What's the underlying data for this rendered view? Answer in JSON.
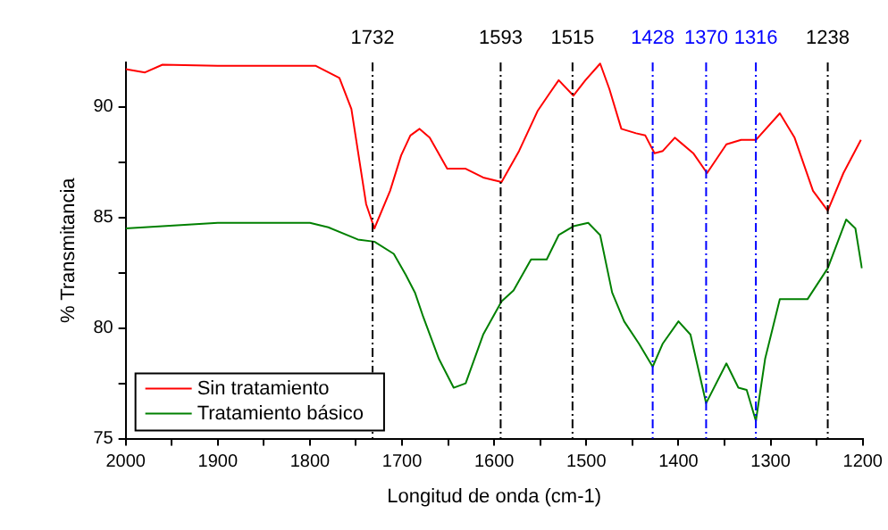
{
  "chart_data": {
    "type": "line",
    "xlabel": "Longitud de onda (cm-1)",
    "ylabel": "% Transmitancia",
    "xlim": [
      2000,
      1200
    ],
    "xticks": [
      2000,
      {
        "value": 1950,
        "label": null
      },
      1900,
      {
        "value": 1850,
        "label": null
      },
      1800,
      {
        "value": 1750,
        "label": null
      },
      1700,
      {
        "value": 1650,
        "label": null
      },
      1600,
      {
        "value": 1550,
        "label": null
      },
      1500,
      {
        "value": 1450,
        "label": null
      },
      1400,
      {
        "value": 1350,
        "label": null
      },
      1300,
      {
        "value": 1250,
        "label": null
      },
      1200
    ],
    "ylim": [
      75,
      92
    ],
    "yticks": [
      75,
      {
        "value": 77.5,
        "label": null
      },
      80,
      {
        "value": 82.5,
        "label": null
      },
      85,
      {
        "value": 87.5,
        "label": null
      },
      90
    ],
    "grid": false,
    "legend": "bottom left",
    "marker": "none",
    "line_style": "solid",
    "series": [
      {
        "name": "Sin tratamiento",
        "color": "#ff0000",
        "x": [
          2000,
          1979,
          1960,
          1900,
          1850,
          1794,
          1768,
          1755,
          1739,
          1730,
          1713,
          1701,
          1691,
          1681,
          1670,
          1651,
          1631,
          1612,
          1592,
          1573,
          1553,
          1540,
          1530,
          1514,
          1501,
          1485,
          1475,
          1462,
          1446,
          1436,
          1426,
          1417,
          1404,
          1384,
          1369,
          1348,
          1332,
          1316,
          1290,
          1274,
          1254,
          1238,
          1221,
          1202
        ],
        "values": [
          91.7,
          91.55,
          91.9,
          91.85,
          91.85,
          91.85,
          91.3,
          89.9,
          85.6,
          84.5,
          86.2,
          87.8,
          88.7,
          89.0,
          88.6,
          87.2,
          87.2,
          86.8,
          86.6,
          88.0,
          89.8,
          90.6,
          91.2,
          90.5,
          91.2,
          91.95,
          90.8,
          89.0,
          88.8,
          88.7,
          87.9,
          88.0,
          88.6,
          87.9,
          87.0,
          88.3,
          88.5,
          88.5,
          89.7,
          88.6,
          86.2,
          85.3,
          87.0,
          88.5
        ]
      },
      {
        "name": "Tratamiento básico",
        "color": "#008000",
        "x": [
          2000,
          1960,
          1900,
          1800,
          1780,
          1748,
          1730,
          1709,
          1696,
          1686,
          1677,
          1660,
          1644,
          1631,
          1612,
          1592,
          1579,
          1560,
          1543,
          1530,
          1514,
          1498,
          1485,
          1472,
          1459,
          1443,
          1428,
          1417,
          1400,
          1387,
          1370,
          1348,
          1335,
          1326,
          1316,
          1306,
          1290,
          1260,
          1238,
          1218,
          1208,
          1201
        ],
        "values": [
          84.5,
          84.6,
          84.75,
          84.75,
          84.55,
          84.0,
          83.9,
          83.35,
          82.4,
          81.6,
          80.5,
          78.6,
          77.3,
          77.5,
          79.7,
          81.2,
          81.7,
          83.1,
          83.1,
          84.2,
          84.6,
          84.75,
          84.2,
          81.6,
          80.3,
          79.3,
          78.25,
          79.3,
          80.3,
          79.7,
          76.6,
          78.4,
          77.3,
          77.2,
          75.8,
          78.6,
          81.3,
          81.3,
          82.7,
          84.9,
          84.5,
          82.7
        ]
      }
    ],
    "ref_lines": [
      {
        "axis": "x",
        "value": 1732,
        "label": "1732",
        "color": "#000000",
        "line_style": "dashed"
      },
      {
        "axis": "x",
        "value": 1593,
        "label": "1593",
        "color": "#000000",
        "line_style": "dashed"
      },
      {
        "axis": "x",
        "value": 1515,
        "label": "1515",
        "color": "#000000",
        "line_style": "dashed"
      },
      {
        "axis": "x",
        "value": 1428,
        "label": "1428",
        "color": "#0000ff",
        "line_style": "dashed"
      },
      {
        "axis": "x",
        "value": 1370,
        "label": "1370",
        "color": "#0000ff",
        "line_style": "dashed"
      },
      {
        "axis": "x",
        "value": 1316,
        "label": "1316",
        "color": "#0000ff",
        "line_style": "dashed"
      },
      {
        "axis": "x",
        "value": 1238,
        "label": "1238",
        "color": "#000000",
        "line_style": "dashed"
      }
    ]
  }
}
